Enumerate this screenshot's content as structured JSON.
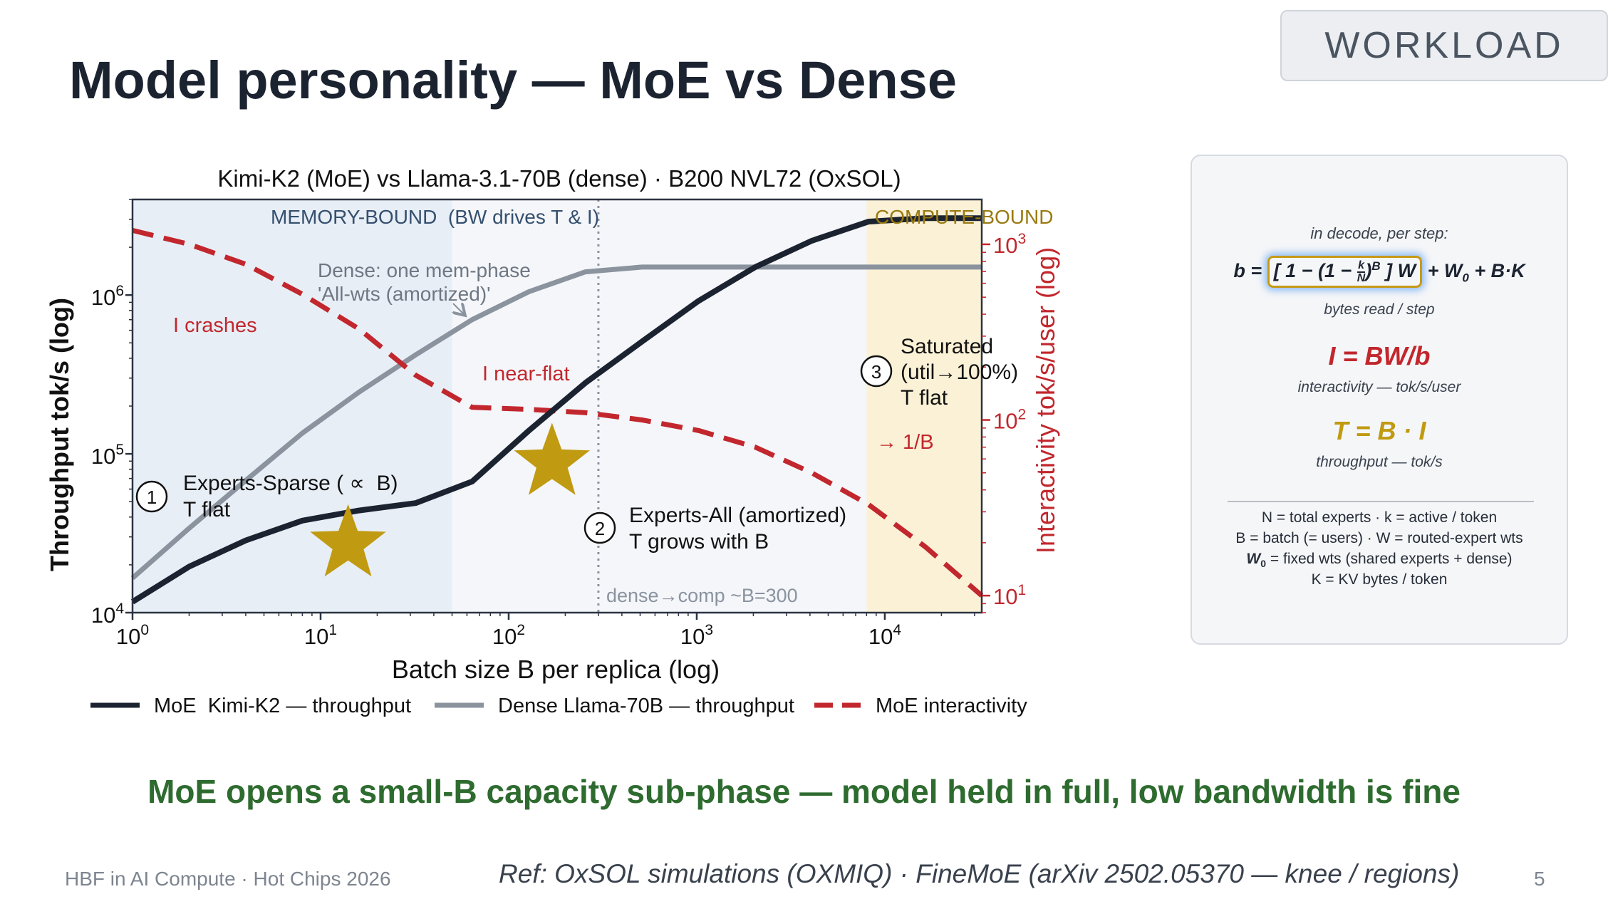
{
  "slide": {
    "title": "Model personality — MoE vs Dense",
    "tag": "WORKLOAD",
    "takeaway": "MoE opens a small-B capacity sub-phase — model held in full, low bandwidth is fine",
    "footer_left": "HBF in AI Compute · Hot Chips 2026",
    "footer_ref": "Ref: OxSOL simulations (OXMIQ) · FineMoE (arXiv 2502.05370 — knee / regions)",
    "page_number": "5"
  },
  "chart_data": {
    "type": "line",
    "title": "Kimi-K2 (MoE) vs Llama-3.1-70B (dense) · B200 NVL72 (OxSOL)",
    "xlabel": "Batch size  B per replica (log)",
    "ylabel": "Throughput tok/s (log)",
    "y2label": "Interactivity tok/s/user (log)",
    "x_scale": "log",
    "y_scale": "log",
    "y2_scale": "log",
    "xlim": [
      1,
      32768
    ],
    "ylim": [
      10000,
      4000000
    ],
    "y2lim": [
      8,
      1800
    ],
    "x_ticks": [
      {
        "value": 1,
        "base": "10",
        "exp": "0"
      },
      {
        "value": 10,
        "base": "10",
        "exp": "1"
      },
      {
        "value": 100,
        "base": "10",
        "exp": "2"
      },
      {
        "value": 1000,
        "base": "10",
        "exp": "3"
      },
      {
        "value": 10000,
        "base": "10",
        "exp": "4"
      }
    ],
    "y_ticks": [
      {
        "value": 10000,
        "base": "10",
        "exp": "4"
      },
      {
        "value": 100000,
        "base": "10",
        "exp": "5"
      },
      {
        "value": 1000000,
        "base": "10",
        "exp": "6"
      }
    ],
    "y2_ticks": [
      {
        "value": 10,
        "base": "10",
        "exp": "1"
      },
      {
        "value": 100,
        "base": "10",
        "exp": "2"
      },
      {
        "value": 1000,
        "base": "10",
        "exp": "3"
      }
    ],
    "grid": false,
    "legend_position": "bottom",
    "series": [
      {
        "name": "MoE  Kimi-K2 — throughput",
        "axis": "left",
        "color": "#1c2330",
        "style": "solid",
        "x": [
          1,
          2,
          4,
          8,
          16,
          32,
          64,
          128,
          256,
          512,
          1024,
          2048,
          4096,
          8192,
          16384,
          32768
        ],
        "y": [
          11700,
          19500,
          28500,
          38000,
          44000,
          49000,
          67000,
          140000,
          280000,
          510000,
          920000,
          1500000,
          2200000,
          2900000,
          3050000,
          3050000
        ]
      },
      {
        "name": "Dense Llama-70B — throughput",
        "axis": "left",
        "color": "#8a939e",
        "style": "solid",
        "x": [
          1,
          2,
          4,
          8,
          16,
          32,
          64,
          128,
          256,
          512,
          1024,
          2048,
          4096,
          8192,
          16384,
          32768
        ],
        "y": [
          16500,
          34000,
          68000,
          135000,
          245000,
          420000,
          700000,
          1050000,
          1400000,
          1500000,
          1500000,
          1500000,
          1500000,
          1500000,
          1500000,
          1500000
        ]
      },
      {
        "name": "MoE interactivity",
        "axis": "right",
        "color": "#c1272d",
        "style": "dashed",
        "x": [
          1,
          2,
          4,
          8,
          16,
          32,
          64,
          128,
          256,
          512,
          1024,
          2048,
          4096,
          8192,
          16384,
          32768
        ],
        "y": [
          1200,
          1000,
          770,
          520,
          330,
          180,
          118,
          115,
          110,
          100,
          87,
          70,
          50,
          33,
          19,
          10
        ]
      }
    ],
    "regions": [
      {
        "label": "MEMORY-BOUND  (BW drives T & I)",
        "x_start": 1,
        "x_end": 50,
        "color": "#e8eef6"
      },
      {
        "label": "COMPUTE-BOUND",
        "x_start": 8000,
        "x_end": 32768,
        "color": "#fbf1d6"
      }
    ],
    "vline": {
      "x": 300,
      "label": "dense→comp ~B=300"
    },
    "annotations": {
      "i_crashes": "I crashes",
      "dense_line1": "Dense: one mem-phase",
      "dense_line2": "'All-wts (amortized)'",
      "i_near_flat": "I near-flat",
      "saturated_line1": "Saturated",
      "saturated_line2": "(util→100%)",
      "saturated_line3": "T flat",
      "one_over_b": "→ 1/B",
      "marker1": "1",
      "marker1_line1": "Experts-Sparse ( ∝  B)",
      "marker1_line2": "T flat",
      "marker2": "2",
      "marker2_line1": "Experts-All (amortized)",
      "marker2_line2": "T grows with B",
      "marker3": "3"
    },
    "stars": [
      {
        "x": 14,
        "y": 27000,
        "color": "#c09a10"
      },
      {
        "x": 170,
        "y": 88000,
        "color": "#c09a10"
      }
    ]
  },
  "formula_card": {
    "caption_top": "in decode, per step:",
    "b_lhs": "b = ",
    "b_box_pre": "[ 1 − (1 − ",
    "b_k": "k",
    "b_n": "N",
    "b_box_post": ")",
    "b_exp": "B",
    "b_box_close": " ] W",
    "b_rest_a": " + W",
    "b_rest_sub": "0",
    "b_rest_b": " + B·K",
    "caption_b": "bytes read / step",
    "i_formula": "I = BW/b",
    "caption_i": "interactivity — tok/s/user",
    "t_formula": "T = B · I",
    "caption_t": "throughput — tok/s",
    "def1": "N = total experts · k = active / token",
    "def2": "B = batch (= users) · W = routed-expert wts",
    "def3_sym": "W",
    "def3_sub": "0",
    "def3_rest": " = fixed wts (shared experts + dense)",
    "def4": "K = KV bytes / token"
  }
}
